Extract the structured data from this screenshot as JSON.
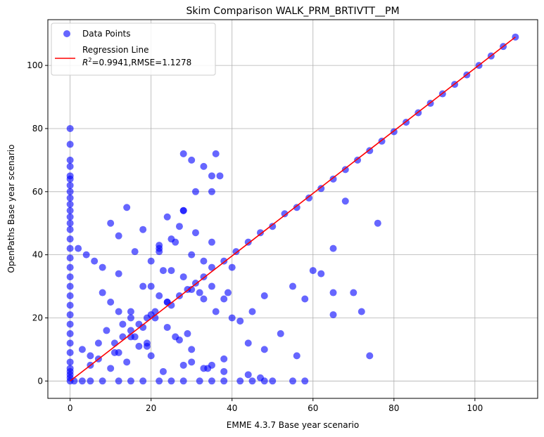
{
  "chart_data": {
    "type": "scatter",
    "title": "Skim Comparison WALK_PRM_BRTIVTT__PM",
    "xlabel": "EMME 4.3.7 Base year scenario",
    "ylabel": "OpenPaths Base year scenario",
    "xlim": [
      -5.5,
      115.5
    ],
    "ylim": [
      -5.5,
      114.5
    ],
    "xticks": [
      0,
      20,
      40,
      60,
      80,
      100
    ],
    "yticks": [
      0,
      20,
      40,
      60,
      80,
      100
    ],
    "grid": true,
    "legend_position": "top-left",
    "colors": {
      "points": "#0000ff",
      "line": "#ff0000"
    },
    "series": [
      {
        "name": "Data Points",
        "kind": "scatter",
        "x": [
          0,
          0,
          0,
          0,
          0,
          0,
          0,
          0,
          0,
          0,
          0,
          0,
          0,
          0,
          0,
          0,
          0,
          0,
          0,
          0,
          0,
          0,
          0,
          0,
          0,
          0,
          0,
          0,
          0,
          0,
          0,
          0,
          0,
          1,
          3,
          5,
          8,
          12,
          15,
          18,
          22,
          25,
          28,
          32,
          35,
          38,
          42,
          45,
          48,
          50,
          2,
          4,
          6,
          8,
          10,
          12,
          15,
          18,
          20,
          22,
          25,
          28,
          30,
          32,
          35,
          38,
          40,
          3,
          5,
          7,
          9,
          11,
          13,
          16,
          19,
          21,
          24,
          27,
          29,
          33,
          36,
          39,
          42,
          5,
          7,
          10,
          12,
          14,
          17,
          20,
          23,
          26,
          30,
          34,
          8,
          12,
          15,
          18,
          22,
          25,
          30,
          35,
          10,
          14,
          18,
          24,
          28,
          12,
          16,
          22,
          27,
          31,
          35,
          37,
          15,
          19,
          25,
          28,
          33,
          20,
          24,
          30,
          31,
          33,
          35,
          36,
          40,
          45,
          48,
          55,
          58,
          62,
          60,
          65,
          68,
          70,
          72,
          76,
          38,
          44,
          47,
          55,
          58,
          44,
          48,
          52,
          56,
          28,
          30,
          33,
          35,
          38,
          65,
          65,
          74,
          20,
          22,
          23,
          26,
          28,
          11,
          13,
          15,
          17,
          19,
          21,
          24,
          27,
          29,
          31,
          33,
          35,
          38,
          41,
          44,
          47,
          50,
          53,
          56,
          59,
          62,
          65,
          68,
          71,
          74,
          77,
          80,
          83,
          86,
          89,
          92,
          95,
          98,
          101,
          104,
          107,
          110
        ],
        "y": [
          0,
          3,
          6,
          9,
          12,
          15,
          18,
          21,
          24,
          27,
          30,
          33,
          36,
          39,
          42,
          45,
          48,
          50,
          52,
          54,
          56,
          58,
          60,
          62,
          64,
          65,
          68,
          70,
          75,
          80,
          1,
          2,
          4,
          0,
          0,
          0,
          0,
          0,
          0,
          0,
          0,
          0,
          0,
          0,
          0,
          0,
          0,
          0,
          0,
          0,
          42,
          40,
          38,
          36,
          25,
          22,
          20,
          17,
          21,
          27,
          24,
          33,
          29,
          28,
          30,
          26,
          36,
          10,
          8,
          12,
          16,
          9,
          18,
          14,
          11,
          20,
          17,
          13,
          15,
          26,
          22,
          28,
          19,
          5,
          7,
          4,
          9,
          6,
          11,
          8,
          3,
          14,
          10,
          4,
          28,
          34,
          22,
          30,
          41,
          35,
          40,
          44,
          50,
          55,
          48,
          52,
          54,
          46,
          41,
          43,
          49,
          47,
          60,
          65,
          14,
          12,
          45,
          72,
          38,
          30,
          25,
          70,
          60,
          68,
          65,
          72,
          20,
          22,
          27,
          30,
          26,
          34,
          35,
          42,
          57,
          28,
          22,
          50,
          3,
          2,
          1,
          0,
          0,
          12,
          10,
          15,
          8,
          5,
          6,
          4,
          5,
          7,
          28,
          21,
          8,
          38,
          42,
          35,
          44,
          54,
          12,
          14,
          16,
          18,
          20,
          22,
          25,
          27,
          29,
          31,
          33,
          36,
          38,
          41,
          44,
          47,
          49,
          53,
          55,
          58,
          61,
          64,
          67,
          70,
          73,
          76,
          79,
          82,
          85,
          88,
          91,
          94,
          97,
          100,
          103,
          106,
          109
        ]
      },
      {
        "name": "Regression Line",
        "kind": "line",
        "label_line2": "=0.9941,RMSE=1.1278",
        "r2_symbol": "R",
        "x": [
          0,
          110
        ],
        "y": [
          0,
          109
        ]
      }
    ]
  }
}
